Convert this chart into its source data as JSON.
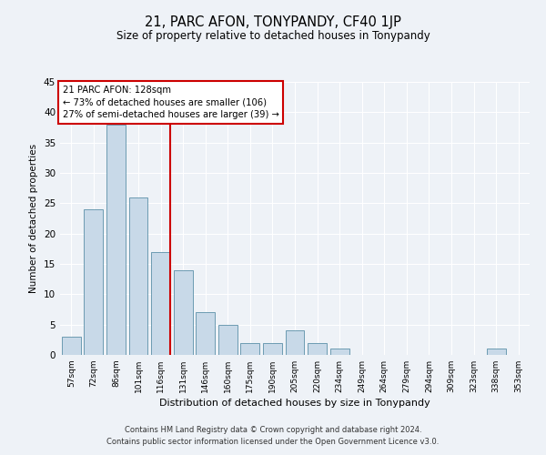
{
  "title": "21, PARC AFON, TONYPANDY, CF40 1JP",
  "subtitle": "Size of property relative to detached houses in Tonypandy",
  "xlabel": "Distribution of detached houses by size in Tonypandy",
  "ylabel": "Number of detached properties",
  "categories": [
    "57sqm",
    "72sqm",
    "86sqm",
    "101sqm",
    "116sqm",
    "131sqm",
    "146sqm",
    "160sqm",
    "175sqm",
    "190sqm",
    "205sqm",
    "220sqm",
    "234sqm",
    "249sqm",
    "264sqm",
    "279sqm",
    "294sqm",
    "309sqm",
    "323sqm",
    "338sqm",
    "353sqm"
  ],
  "values": [
    3,
    24,
    38,
    26,
    17,
    14,
    7,
    5,
    2,
    2,
    4,
    2,
    1,
    0,
    0,
    0,
    0,
    0,
    0,
    1,
    0
  ],
  "bar_color": "#c8d9e8",
  "bar_edge_color": "#5b8fa8",
  "annotation_text": "21 PARC AFON: 128sqm\n← 73% of detached houses are smaller (106)\n27% of semi-detached houses are larger (39) →",
  "annotation_box_color": "#ffffff",
  "annotation_box_edge_color": "#cc0000",
  "vline_color": "#cc0000",
  "ylim": [
    0,
    45
  ],
  "yticks": [
    0,
    5,
    10,
    15,
    20,
    25,
    30,
    35,
    40,
    45
  ],
  "bg_color": "#eef2f7",
  "grid_color": "#ffffff",
  "footer_line1": "Contains HM Land Registry data © Crown copyright and database right 2024.",
  "footer_line2": "Contains public sector information licensed under the Open Government Licence v3.0."
}
